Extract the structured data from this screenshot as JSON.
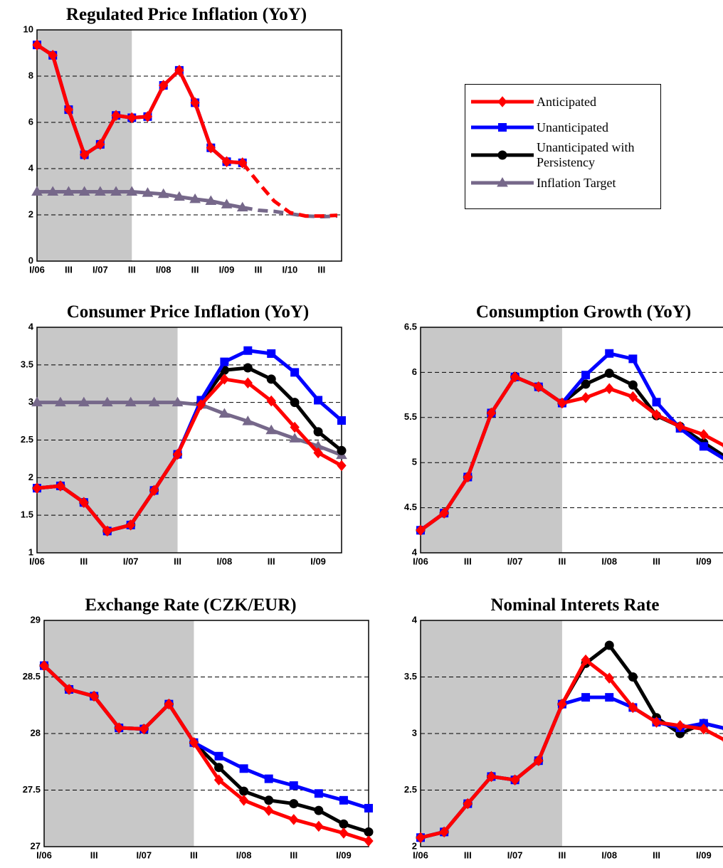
{
  "chart_data": [
    {
      "type": "line",
      "title": "Regulated Price Inflation (YoY)",
      "categories": [
        "I/06",
        null,
        "III",
        null,
        "I/07",
        null,
        "III",
        null,
        "I/08",
        null,
        "III",
        null,
        "I/09",
        null,
        "III",
        null,
        "I/10",
        null,
        "III",
        null
      ],
      "series": [
        {
          "name": "Anticipated",
          "color": "#ff0000",
          "marker": "diamond",
          "values": [
            9.35,
            8.9,
            6.55,
            4.6,
            5.05,
            6.3,
            6.2,
            6.25,
            7.6,
            8.25,
            6.85,
            4.9,
            4.3,
            4.25,
            3.4,
            2.6,
            2.1,
            1.95,
            1.95,
            1.98
          ]
        },
        {
          "name": "Unanticipated",
          "color": "#0000ff",
          "marker": "square",
          "values": [
            9.35,
            8.9,
            6.55,
            4.6,
            5.05,
            6.3,
            6.2,
            6.25,
            7.6,
            8.25,
            6.85,
            4.9,
            4.3,
            4.25,
            null,
            null,
            null,
            null,
            null,
            null
          ]
        },
        {
          "name": "Inflation Target",
          "color": "#76688a",
          "marker": "triangle",
          "values": [
            3.0,
            3.0,
            3.0,
            3.0,
            3.0,
            3.0,
            3.0,
            2.95,
            2.9,
            2.78,
            2.68,
            2.6,
            2.45,
            2.32,
            2.2,
            2.15,
            2.05,
            1.95,
            1.92,
            1.95
          ]
        }
      ],
      "ylim": [
        0,
        10
      ],
      "yticks": [
        0,
        2,
        4,
        6,
        8,
        10
      ],
      "grid": true,
      "shaded_until_index": 6,
      "dashed_from_index": 13
    },
    {
      "type": "line",
      "title": "Consumer Price Inflation (YoY)",
      "categories": [
        "I/06",
        null,
        "III",
        null,
        "I/07",
        null,
        "III",
        null,
        "I/08",
        null,
        "III",
        null,
        "I/09",
        null
      ],
      "series": [
        {
          "name": "Anticipated",
          "color": "#ff0000",
          "marker": "diamond",
          "values": [
            1.86,
            1.89,
            1.67,
            1.29,
            1.37,
            1.83,
            2.31,
            2.97,
            3.31,
            3.26,
            3.02,
            2.67,
            2.33,
            2.16
          ]
        },
        {
          "name": "Unanticipated",
          "color": "#0000ff",
          "marker": "square",
          "values": [
            1.86,
            1.89,
            1.67,
            1.29,
            1.37,
            1.83,
            2.31,
            3.03,
            3.54,
            3.69,
            3.65,
            3.4,
            3.03,
            2.76
          ]
        },
        {
          "name": "Unanticipated with Persistency",
          "color": "#000000",
          "marker": "circle",
          "values": [
            1.86,
            1.89,
            1.67,
            1.29,
            1.37,
            1.83,
            2.31,
            3.0,
            3.43,
            3.46,
            3.31,
            3.0,
            2.61,
            2.36
          ]
        },
        {
          "name": "Inflation Target",
          "color": "#76688a",
          "marker": "triangle",
          "values": [
            3.0,
            3.0,
            3.0,
            3.0,
            3.0,
            3.0,
            3.0,
            2.97,
            2.85,
            2.75,
            2.63,
            2.52,
            2.42,
            2.3
          ]
        }
      ],
      "ylim": [
        1,
        4
      ],
      "yticks": [
        1,
        1.5,
        2,
        2.5,
        3,
        3.5,
        4
      ],
      "grid": true,
      "shaded_until_index": 6
    },
    {
      "type": "line",
      "title": "Consumption Growth (YoY)",
      "categories": [
        "I/06",
        null,
        "III",
        null,
        "I/07",
        null,
        "III",
        null,
        "I/08",
        null,
        "III",
        null,
        "I/09",
        null
      ],
      "series": [
        {
          "name": "Anticipated",
          "color": "#ff0000",
          "marker": "diamond",
          "values": [
            4.25,
            4.44,
            4.84,
            5.55,
            5.95,
            5.84,
            5.66,
            5.72,
            5.82,
            5.73,
            5.53,
            5.4,
            5.31,
            5.17
          ]
        },
        {
          "name": "Unanticipated",
          "color": "#0000ff",
          "marker": "square",
          "values": [
            4.25,
            4.44,
            4.84,
            5.55,
            5.95,
            5.84,
            5.66,
            5.97,
            6.21,
            6.15,
            5.67,
            5.38,
            5.18,
            5.02
          ]
        },
        {
          "name": "Unanticipated with Persistency",
          "color": "#000000",
          "marker": "circle",
          "values": [
            4.25,
            4.44,
            4.84,
            5.55,
            5.95,
            5.84,
            5.66,
            5.87,
            5.99,
            5.86,
            5.52,
            5.4,
            5.22,
            5.05
          ]
        }
      ],
      "ylim": [
        4,
        6.5
      ],
      "yticks": [
        4,
        4.5,
        5,
        5.5,
        6,
        6.5
      ],
      "grid": true,
      "shaded_until_index": 6
    },
    {
      "type": "line",
      "title": "Exchange Rate (CZK/EUR)",
      "categories": [
        "I/06",
        null,
        "III",
        null,
        "I/07",
        null,
        "III",
        null,
        "I/08",
        null,
        "III",
        null,
        "I/09",
        null
      ],
      "series": [
        {
          "name": "Anticipated",
          "color": "#ff0000",
          "marker": "diamond",
          "values": [
            28.6,
            28.39,
            28.33,
            28.05,
            28.04,
            28.26,
            27.92,
            27.59,
            27.41,
            27.32,
            27.24,
            27.18,
            27.12,
            27.05
          ]
        },
        {
          "name": "Unanticipated",
          "color": "#0000ff",
          "marker": "square",
          "values": [
            28.6,
            28.39,
            28.33,
            28.05,
            28.04,
            28.26,
            27.92,
            27.8,
            27.69,
            27.6,
            27.54,
            27.47,
            27.41,
            27.34
          ]
        },
        {
          "name": "Unanticipated with Persistency",
          "color": "#000000",
          "marker": "circle",
          "values": [
            28.6,
            28.39,
            28.33,
            28.05,
            28.04,
            28.26,
            27.92,
            27.7,
            27.49,
            27.41,
            27.38,
            27.32,
            27.2,
            27.13
          ]
        }
      ],
      "ylim": [
        27,
        29
      ],
      "yticks": [
        27,
        27.5,
        28,
        28.5,
        29
      ],
      "grid": true,
      "shaded_until_index": 6
    },
    {
      "type": "line",
      "title": "Nominal Interets Rate",
      "categories": [
        "I/06",
        null,
        "III",
        null,
        "I/07",
        null,
        "III",
        null,
        "I/08",
        null,
        "III",
        null,
        "I/09",
        null
      ],
      "series": [
        {
          "name": "Anticipated",
          "color": "#ff0000",
          "marker": "diamond",
          "values": [
            2.08,
            2.13,
            2.38,
            2.62,
            2.59,
            2.76,
            3.26,
            3.65,
            3.49,
            3.23,
            3.1,
            3.07,
            3.04,
            2.93
          ]
        },
        {
          "name": "Unanticipated",
          "color": "#0000ff",
          "marker": "square",
          "values": [
            2.08,
            2.13,
            2.38,
            2.62,
            2.59,
            2.76,
            3.26,
            3.32,
            3.32,
            3.23,
            3.1,
            3.05,
            3.09,
            3.04
          ]
        },
        {
          "name": "Unanticipated with Persistency",
          "color": "#000000",
          "marker": "circle",
          "values": [
            2.08,
            2.13,
            2.38,
            2.62,
            2.59,
            2.76,
            3.26,
            3.62,
            3.78,
            3.5,
            3.14,
            3.0,
            3.09,
            3.04
          ]
        }
      ],
      "ylim": [
        2,
        4
      ],
      "yticks": [
        2,
        2.5,
        3,
        3.5,
        4
      ],
      "grid": true,
      "shaded_until_index": 6
    }
  ]
}
